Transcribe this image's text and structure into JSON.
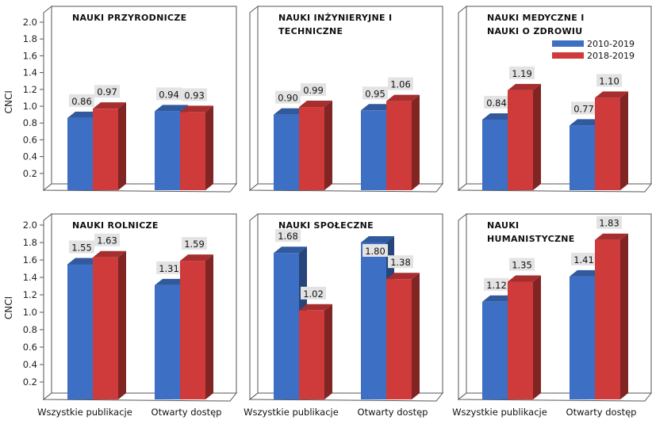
{
  "figure": {
    "y_axis_label": "CNCI",
    "legend": [
      "2010-2019",
      "2018-2019"
    ]
  },
  "colors": {
    "series_2010_2019": "#3d6fc4",
    "series_2018_2019": "#cf3a3a",
    "label_bg": "#e3e3e3"
  },
  "chart_data": [
    {
      "type": "bar",
      "title": "NAUKI PRZYRODNICZE",
      "categories": [
        "Wszystkie publikacje",
        "Otwarty dostęp"
      ],
      "series": [
        {
          "name": "2010-2019",
          "values": [
            0.86,
            0.94
          ],
          "labels": [
            "0.86",
            "0.94"
          ]
        },
        {
          "name": "2018-2019",
          "values": [
            0.97,
            0.93
          ],
          "labels": [
            "0.97",
            "0.93"
          ]
        }
      ],
      "ylabel": "CNCI",
      "ylim": [
        0,
        2.0
      ],
      "yticks": [
        "2.0",
        "1.8",
        "1.6",
        "1.4",
        "1.2",
        "1.0",
        "0.8",
        "0.6",
        "0.4",
        "0.2"
      ],
      "grid": false
    },
    {
      "type": "bar",
      "title": "NAUKI INŻYNIERYJNE I TECHNICZNE",
      "categories": [
        "Wszystkie publikacje",
        "Otwarty dostęp"
      ],
      "series": [
        {
          "name": "2010-2019",
          "values": [
            0.9,
            0.95
          ],
          "labels": [
            "0.90",
            "0.95"
          ]
        },
        {
          "name": "2018-2019",
          "values": [
            0.99,
            1.06
          ],
          "labels": [
            "0.99",
            "1.06"
          ]
        }
      ],
      "ylim": [
        0,
        2.0
      ],
      "grid": false
    },
    {
      "type": "bar",
      "title": "NAUKI MEDYCZNE I NAUKI O ZDROWIU",
      "categories": [
        "Wszystkie publikacje",
        "Otwarty dostęp"
      ],
      "series": [
        {
          "name": "2010-2019",
          "values": [
            0.84,
            0.77
          ],
          "labels": [
            "0.84",
            "0.77"
          ]
        },
        {
          "name": "2018-2019",
          "values": [
            1.19,
            1.1
          ],
          "labels": [
            "1.19",
            "1.10"
          ]
        }
      ],
      "ylim": [
        0,
        2.0
      ],
      "legend_position": "top-right",
      "grid": false
    },
    {
      "type": "bar",
      "title": "NAUKI ROLNICZE",
      "categories": [
        "Wszystkie publikacje",
        "Otwarty dostęp"
      ],
      "series": [
        {
          "name": "2010-2019",
          "values": [
            1.55,
            1.31
          ],
          "labels": [
            "1.55",
            "1.31"
          ]
        },
        {
          "name": "2018-2019",
          "values": [
            1.63,
            1.59
          ],
          "labels": [
            "1.63",
            "1.59"
          ]
        }
      ],
      "ylabel": "CNCI",
      "ylim": [
        0,
        2.0
      ],
      "yticks": [
        "2.0",
        "1.8",
        "1.6",
        "1.4",
        "1.2",
        "1.0",
        "0.8",
        "0.6",
        "0.4",
        "0.2"
      ],
      "xticks": [
        "Wszystkie publikacje",
        "Otwarty dostęp"
      ],
      "grid": false
    },
    {
      "type": "bar",
      "title": "NAUKI SPOŁECZNE",
      "categories": [
        "Wszystkie publikacje",
        "Otwarty dostęp"
      ],
      "series": [
        {
          "name": "2010-2019",
          "values": [
            1.68,
            1.8
          ],
          "labels": [
            "1.68",
            "1.80"
          ]
        },
        {
          "name": "2018-2019",
          "values": [
            1.02,
            1.38
          ],
          "labels": [
            "1.02",
            "1.38"
          ]
        }
      ],
      "ylim": [
        0,
        2.0
      ],
      "xticks": [
        "Wszystkie publikacje",
        "Otwarty dostęp"
      ],
      "grid": false
    },
    {
      "type": "bar",
      "title": "NAUKI HUMANISTYCZNE",
      "categories": [
        "Wszystkie publikacje",
        "Otwarty dostęp"
      ],
      "series": [
        {
          "name": "2010-2019",
          "values": [
            1.12,
            1.41
          ],
          "labels": [
            "1.12",
            "1.41"
          ]
        },
        {
          "name": "2018-2019",
          "values": [
            1.35,
            1.83
          ],
          "labels": [
            "1.35",
            "1.83"
          ]
        }
      ],
      "ylim": [
        0,
        2.0
      ],
      "xticks": [
        "Wszystkie publikacje",
        "Otwarty dostęp"
      ],
      "grid": false
    }
  ]
}
